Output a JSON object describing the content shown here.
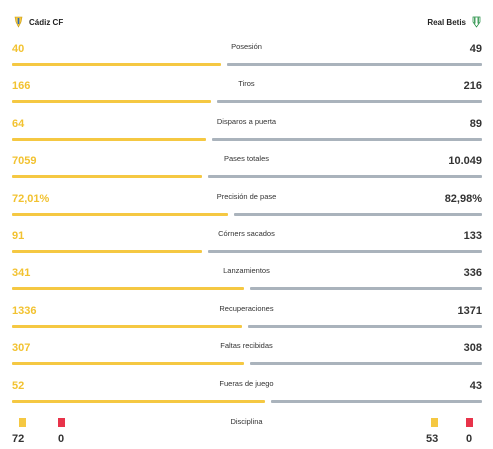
{
  "teams": {
    "home": {
      "name": "Cádiz CF",
      "color": "#f5c842"
    },
    "away": {
      "name": "Real Betis",
      "color": "#aab3bc"
    }
  },
  "stats": [
    {
      "label": "Posesión",
      "home": "40",
      "away": "49",
      "home_share": 0.45
    },
    {
      "label": "Tiros",
      "home": "166",
      "away": "216",
      "home_share": 0.43
    },
    {
      "label": "Disparos a puerta",
      "home": "64",
      "away": "89",
      "home_share": 0.42
    },
    {
      "label": "Pases totales",
      "home": "7059",
      "away": "10.049",
      "home_share": 0.41
    },
    {
      "label": "Precisión de pase",
      "home": "72,01%",
      "away": "82,98%",
      "home_share": 0.465
    },
    {
      "label": "Córners sacados",
      "home": "91",
      "away": "133",
      "home_share": 0.41
    },
    {
      "label": "Lanzamientos",
      "home": "341",
      "away": "336",
      "home_share": 0.5
    },
    {
      "label": "Recuperaciones",
      "home": "1336",
      "away": "1371",
      "home_share": 0.495
    },
    {
      "label": "Faltas recibidas",
      "home": "307",
      "away": "308",
      "home_share": 0.5
    },
    {
      "label": "Fueras de juego",
      "home": "52",
      "away": "43",
      "home_share": 0.545
    }
  ],
  "discipline": {
    "label": "Disciplina",
    "home_yellow": "72",
    "home_red": "0",
    "away_yellow": "53",
    "away_red": "0",
    "yellow_color": "#f5c842",
    "red_color": "#e8334a"
  },
  "icons": {
    "home_crest": "cadiz-crest-icon",
    "away_crest": "betis-crest-icon",
    "yellow_card": "yellow-card-icon",
    "red_card": "red-card-icon"
  }
}
